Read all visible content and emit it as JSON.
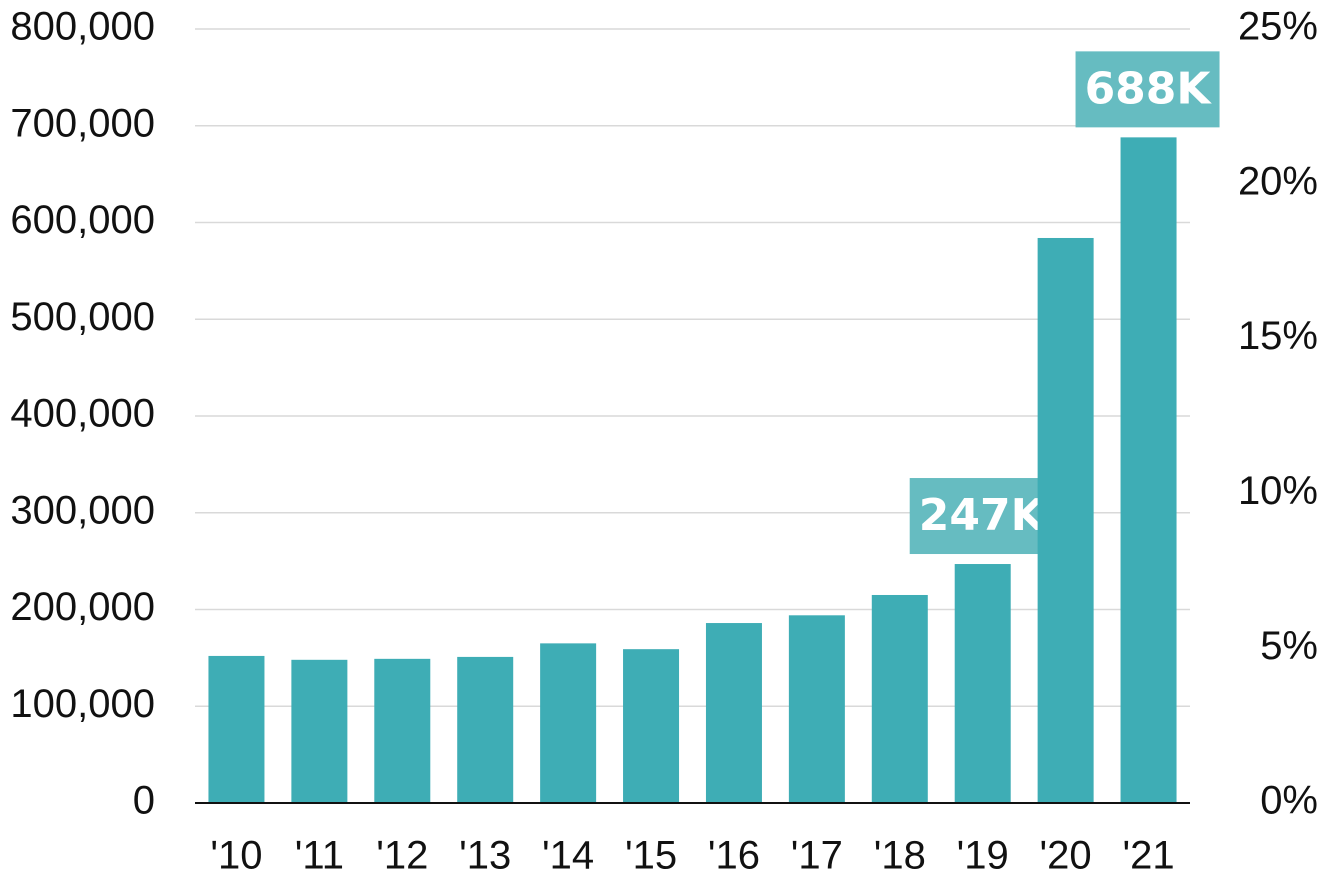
{
  "chart_data": {
    "type": "bar",
    "categories": [
      "'10",
      "'11",
      "'12",
      "'13",
      "'14",
      "'15",
      "'16",
      "'17",
      "'18",
      "'19",
      "'20",
      "'21"
    ],
    "values": [
      152000,
      148000,
      149000,
      151000,
      165000,
      159000,
      186000,
      194000,
      215000,
      247000,
      584000,
      688000
    ],
    "value_labels": [
      null,
      null,
      null,
      null,
      null,
      null,
      null,
      null,
      null,
      "247K",
      null,
      "688K"
    ],
    "color": "#3eadb5",
    "ylim": [
      0,
      800000
    ],
    "yticks": [
      0,
      {
        "value": 100000,
        "label": "100,000"
      },
      {
        "value": 200000,
        "label": "200,000"
      },
      {
        "value": 300000,
        "label": "300,000"
      },
      {
        "value": 400000,
        "label": "400,000"
      },
      {
        "value": 500000,
        "label": "500,000"
      },
      {
        "value": 600000,
        "label": "600,000"
      },
      {
        "value": 700000,
        "label": "700,000"
      },
      {
        "value": 800000,
        "label": "800,000"
      }
    ],
    "y2lim": [
      0,
      25
    ],
    "y2ticks": [
      {
        "value": 0,
        "label": "0%"
      },
      {
        "value": 5,
        "label": "5%"
      },
      {
        "value": 10,
        "label": "10%"
      },
      {
        "value": 15,
        "label": "15%"
      },
      {
        "value": 20,
        "label": "20%"
      },
      {
        "value": 25,
        "label": "25%"
      }
    ],
    "grid": true
  }
}
